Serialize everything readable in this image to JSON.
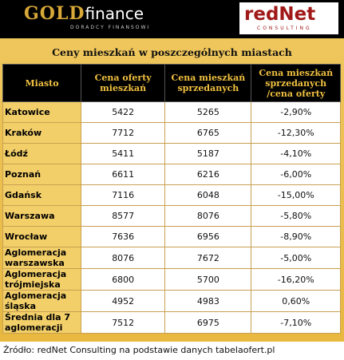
{
  "logos": {
    "gold": "GOLD",
    "finance": "finance",
    "gold_tagline": "DORADCY FINANSOWI",
    "rednet": "redNet",
    "rednet_tagline": "CONSULTING"
  },
  "title": "Ceny mieszkań w poszczególnych miastach",
  "table": {
    "headers": [
      "Miasto",
      "Cena oferty mieszkań",
      "Cena mieszkań sprzedanych",
      "Cena mieszkań sprzedanych /cena oferty"
    ],
    "rows": [
      [
        "Katowice",
        "5422",
        "5265",
        "-2,90%"
      ],
      [
        "Kraków",
        "7712",
        "6765",
        "-12,30%"
      ],
      [
        "Łódź",
        "5411",
        "5187",
        "-4,10%"
      ],
      [
        "Poznań",
        "6611",
        "6216",
        "-6,00%"
      ],
      [
        "Gdańsk",
        "7116",
        "6048",
        "-15,00%"
      ],
      [
        "Warszawa",
        "8577",
        "8076",
        "-5,80%"
      ],
      [
        "Wrocław",
        "7636",
        "6956",
        "-8,90%"
      ],
      [
        "Aglomeracja warszawska",
        "8076",
        "7672",
        "-5,00%"
      ],
      [
        "Aglomeracja trójmiejska",
        "6800",
        "5700",
        "-16,20%"
      ],
      [
        "Aglomeracja śląska",
        "4952",
        "4983",
        "0,60%"
      ],
      [
        "Średnia dla 7 aglomeracji",
        "7512",
        "6975",
        "-7,10%"
      ]
    ]
  },
  "source": "Źródło: redNet Consulting na podstawie danych tabelaofert.pl"
}
